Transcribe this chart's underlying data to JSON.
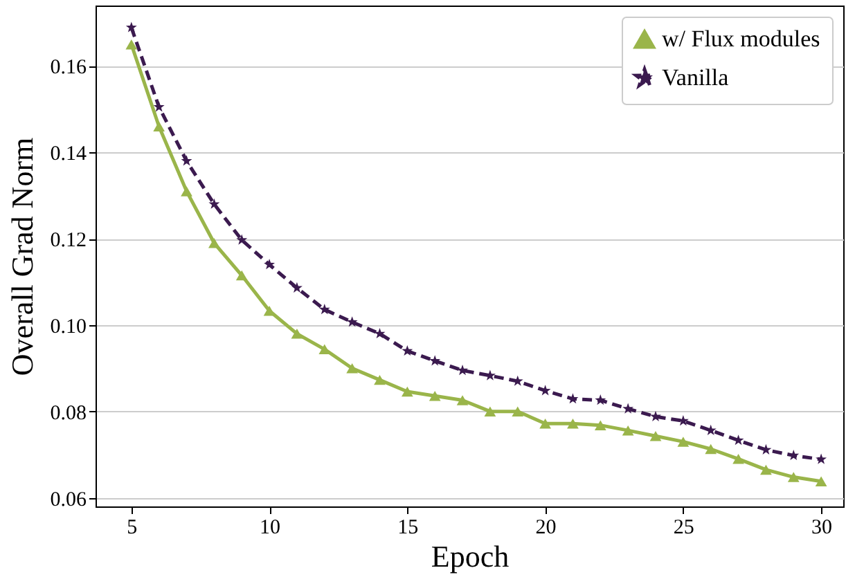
{
  "chart_data": {
    "type": "line",
    "xlabel": "Epoch",
    "ylabel": "Overall Grad Norm",
    "x": [
      5,
      6,
      7,
      8,
      9,
      10,
      11,
      12,
      13,
      14,
      15,
      16,
      17,
      18,
      19,
      20,
      21,
      22,
      23,
      24,
      25,
      26,
      27,
      28,
      29,
      30
    ],
    "series": [
      {
        "name": "w/ Flux modules",
        "color": "#9ab54a",
        "marker": "triangle",
        "line_style": "solid",
        "values": [
          0.165,
          0.146,
          0.131,
          0.119,
          0.1115,
          0.1033,
          0.098,
          0.0944,
          0.09,
          0.0873,
          0.0846,
          0.0836,
          0.0826,
          0.08,
          0.08,
          0.0772,
          0.0772,
          0.0768,
          0.0756,
          0.0743,
          0.073,
          0.0713,
          0.069,
          0.0665,
          0.0648,
          0.0638
        ]
      },
      {
        "name": "Vanilla",
        "color": "#3b1a4f",
        "marker": "star",
        "line_style": "dashed",
        "values": [
          0.1689,
          0.1505,
          0.138,
          0.128,
          0.1197,
          0.114,
          0.1086,
          0.1036,
          0.1007,
          0.098,
          0.094,
          0.0917,
          0.0895,
          0.0883,
          0.087,
          0.0848,
          0.0829,
          0.0826,
          0.0806,
          0.0788,
          0.0778,
          0.0756,
          0.0733,
          0.0711,
          0.0698,
          0.0689
        ]
      }
    ],
    "xlim": [
      3.7,
      30.8
    ],
    "xticks": [
      5,
      10,
      15,
      20,
      25,
      30
    ],
    "ylim": [
      0.058,
      0.174
    ],
    "yticks": [
      {
        "value": 0.06,
        "label": "0.06"
      },
      {
        "value": 0.08,
        "label": "0.08"
      },
      {
        "value": 0.1,
        "label": "0.10"
      },
      {
        "value": 0.12,
        "label": "0.12"
      },
      {
        "value": 0.14,
        "label": "0.14"
      },
      {
        "value": 0.16,
        "label": "0.16"
      }
    ],
    "grid": "y",
    "legend": "top right"
  }
}
